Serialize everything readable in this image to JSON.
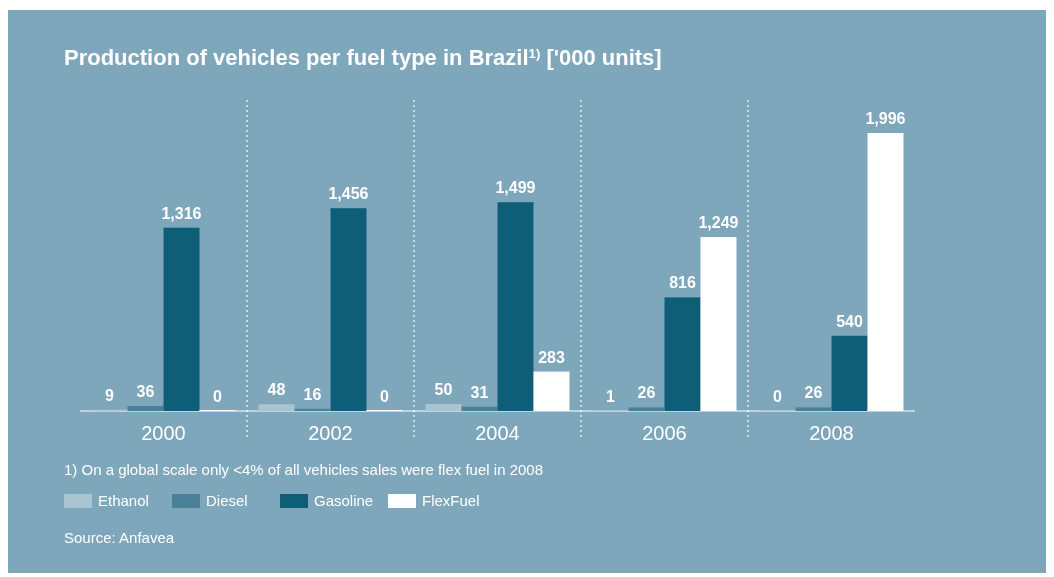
{
  "chart_data": {
    "type": "bar",
    "title": "Production of vehicles per fuel type in Brazil$^{1)}$ ['000 units]",
    "categories": [
      "2000",
      "2002",
      "2004",
      "2006",
      "2008"
    ],
    "series": [
      {
        "name": "Ethanol",
        "color": "#a9c4d3",
        "values": [
          9,
          48,
          50,
          1,
          0
        ],
        "value_labels": [
          "9",
          "48",
          "50",
          "1",
          "0"
        ]
      },
      {
        "name": "Diesel",
        "color": "#4a8198",
        "values": [
          36,
          16,
          31,
          26,
          26
        ],
        "value_labels": [
          "36",
          "16",
          "31",
          "26",
          "26"
        ]
      },
      {
        "name": "Gasoline",
        "color": "#0f5e77",
        "values": [
          1316,
          1456,
          1499,
          816,
          540
        ],
        "value_labels": [
          "1,316",
          "1,456",
          "1,499",
          "816",
          "540"
        ]
      },
      {
        "name": "FlexFuel",
        "color": "#ffffff",
        "values": [
          0,
          0,
          283,
          1249,
          1996
        ],
        "value_labels": [
          "0",
          "0",
          "283",
          "1,249",
          "1,996"
        ]
      }
    ],
    "relative": false,
    "legend": "bottom left",
    "annotations": [
      "1) On a global scale only <4% of all vehicles sales were flex fuel in 2008",
      "Source: Anfavea"
    ]
  }
}
